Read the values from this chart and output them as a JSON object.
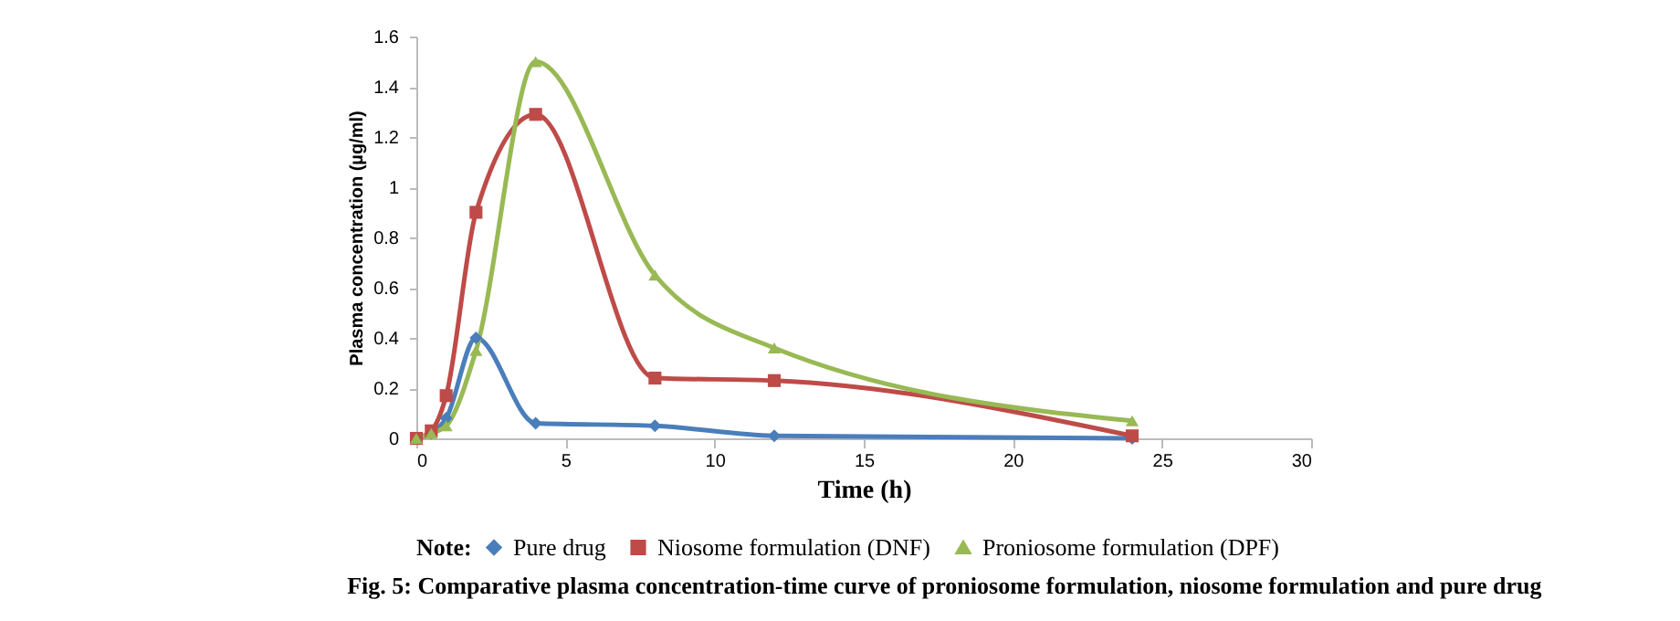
{
  "chart_data": {
    "type": "line",
    "title": "Fig. 5: Comparative plasma concentration-time curve of proniosome formulation, niosome formulation and pure drug",
    "xlabel": "Time (h)",
    "ylabel": "Plasma concentration (µg/ml)",
    "legend_title": "Note:",
    "x": [
      0,
      0.5,
      1,
      2,
      4,
      8,
      12,
      24
    ],
    "series": [
      {
        "name": "Pure drug",
        "color": "#4a7ebb",
        "marker": "diamond",
        "values": [
          0,
          0.02,
          0.08,
          0.4,
          0.06,
          0.05,
          0.01,
          0
        ]
      },
      {
        "name": "Niosome formulation (DNF)",
        "color": "#be4b48",
        "marker": "square",
        "values": [
          0,
          0.03,
          0.17,
          0.9,
          1.29,
          0.24,
          0.23,
          0.01
        ]
      },
      {
        "name": "Proniosome formulation (DPF)",
        "color": "#98b954",
        "marker": "triangle",
        "values": [
          0,
          0.02,
          0.05,
          0.35,
          1.5,
          0.65,
          0.36,
          0.07
        ]
      }
    ],
    "xlim": [
      0,
      30
    ],
    "xticks": [
      0,
      5,
      10,
      15,
      20,
      25,
      30
    ],
    "ylim": [
      0,
      1.6
    ],
    "yticks": [
      0,
      0.2,
      0.4,
      0.6,
      0.8,
      1,
      1.2,
      1.4,
      1.6
    ],
    "grid": false,
    "legend": "bottom",
    "line_style": "solid"
  }
}
